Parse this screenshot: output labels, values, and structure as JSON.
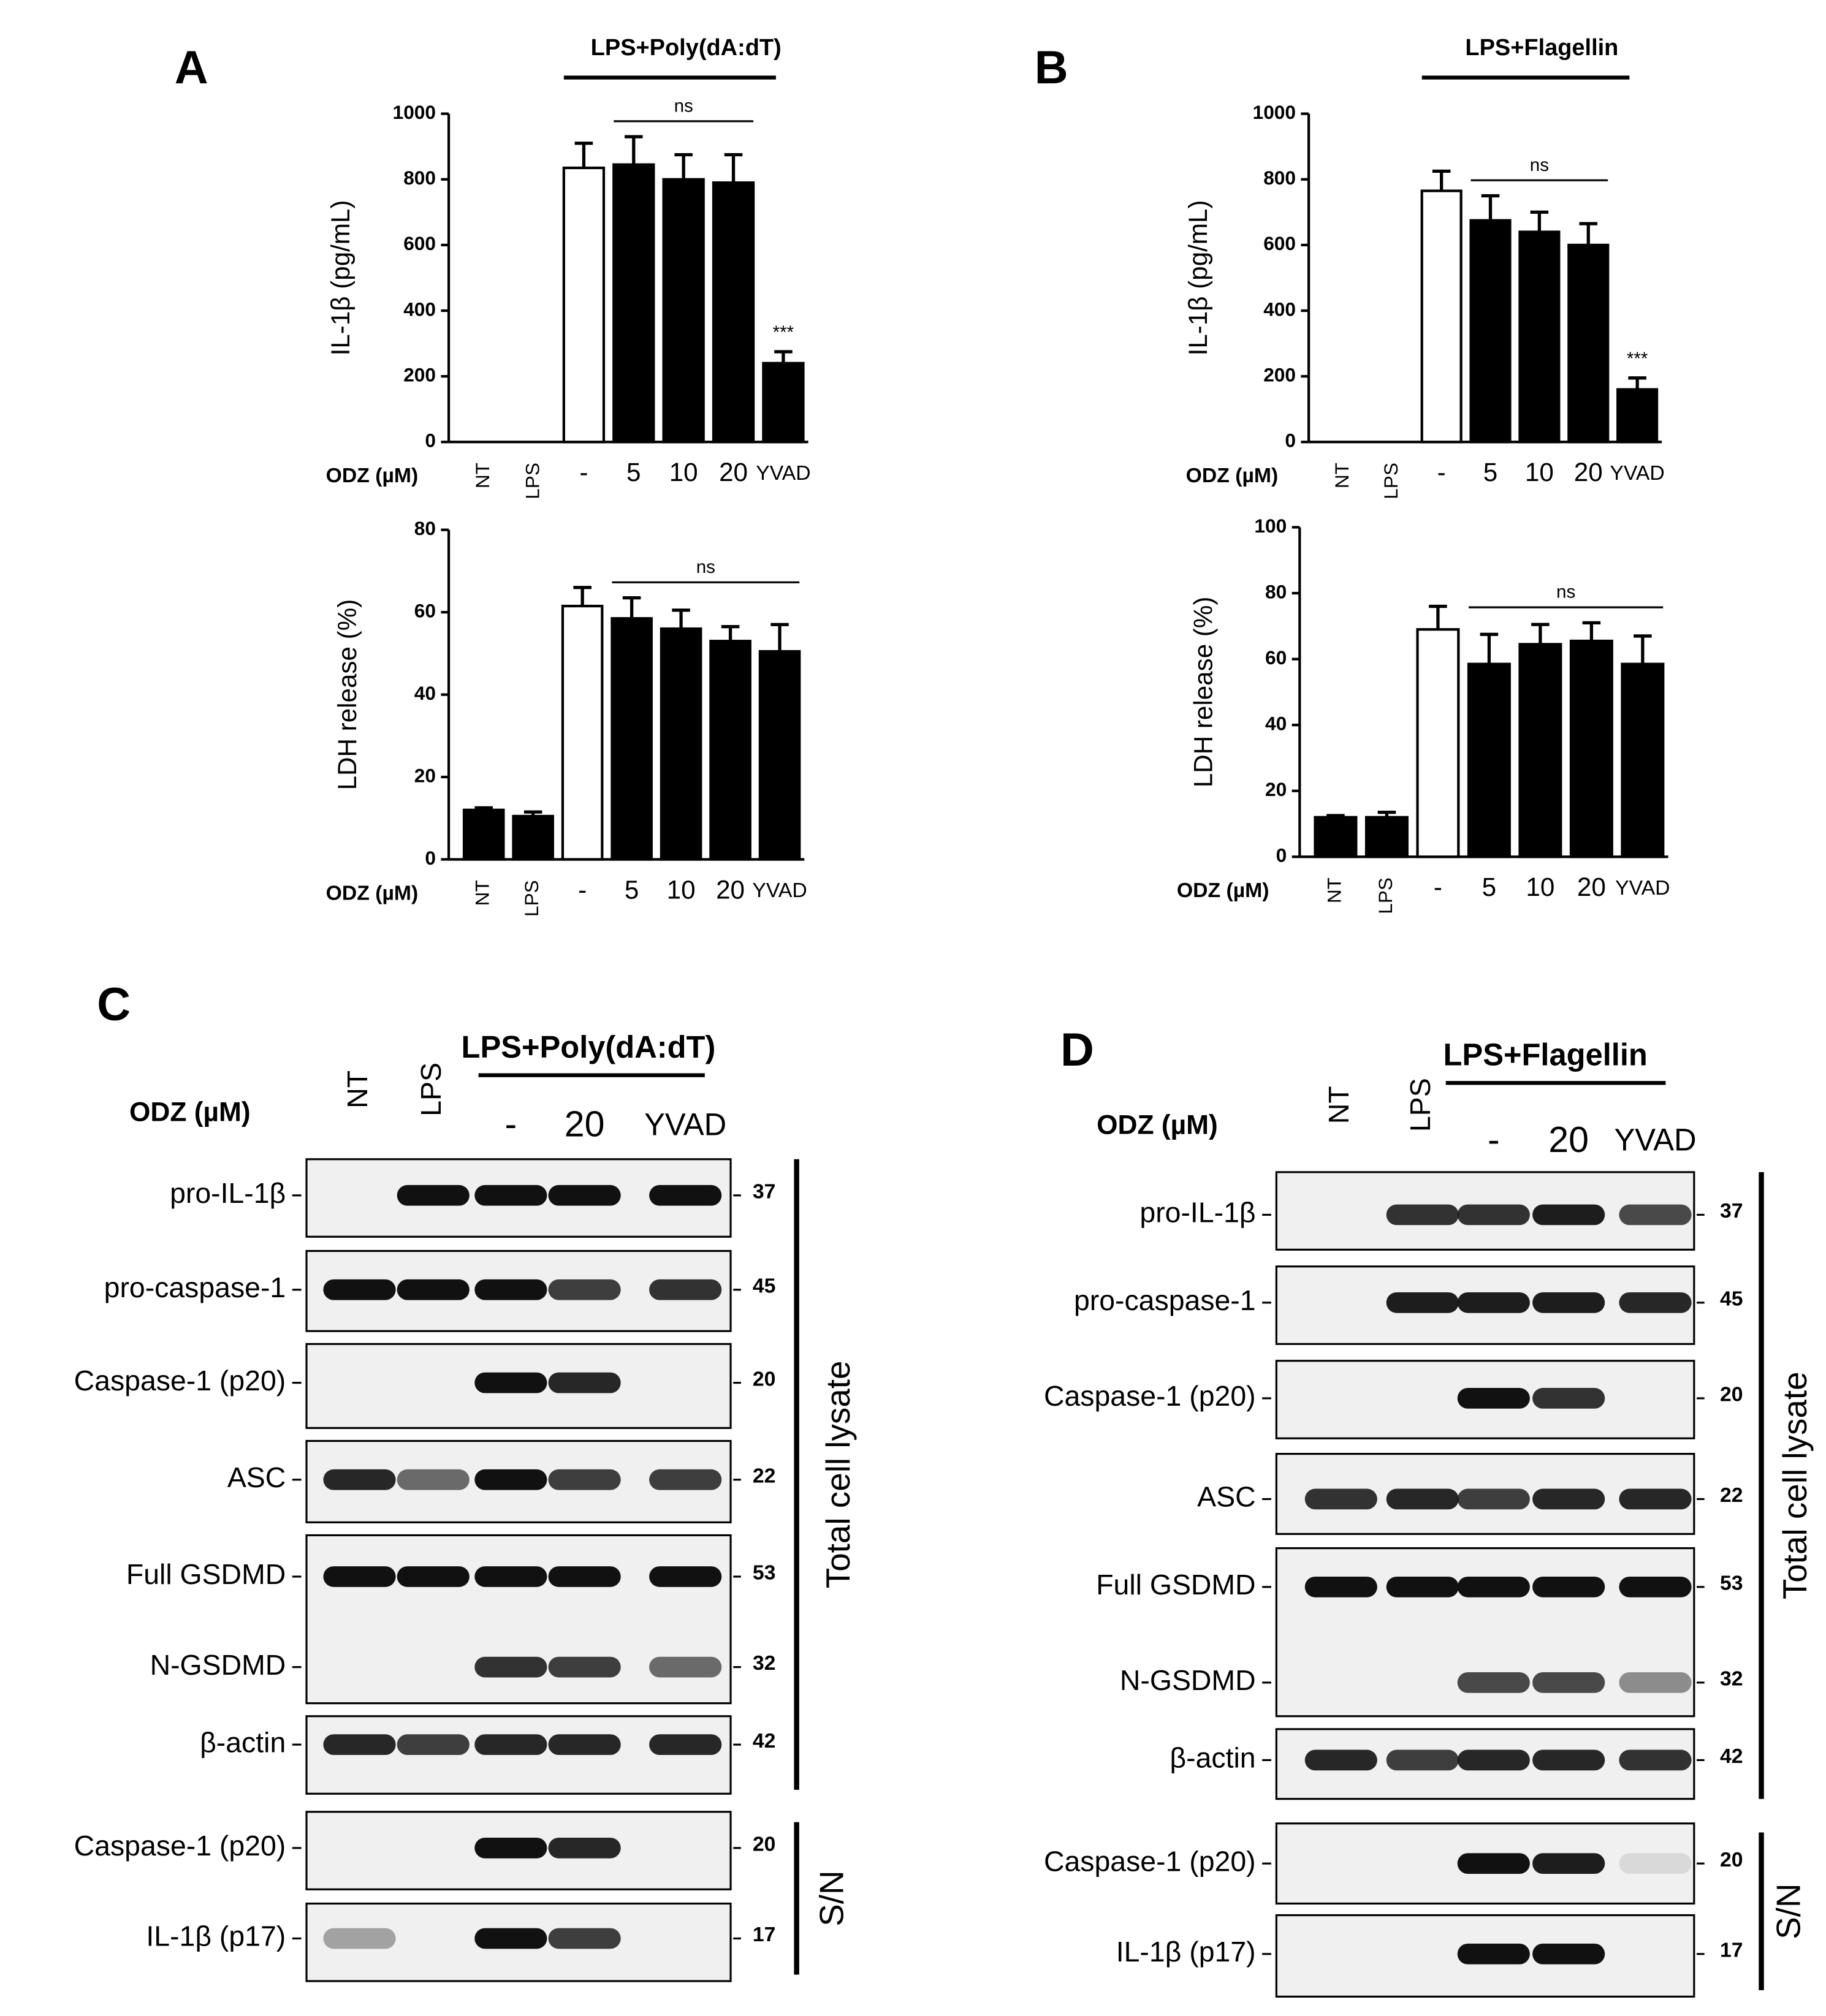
{
  "chart_data": [
    {
      "type": "bar",
      "panel": "A",
      "header": "LPS+Poly(dA:dT)",
      "x_label": "ODZ (µM)",
      "y_label": "IL-1β (pg/mL)",
      "categories": [
        "NT",
        "LPS",
        "-",
        "5",
        "10",
        "20",
        "YVAD"
      ],
      "values": [
        0,
        0,
        835,
        845,
        800,
        790,
        240
      ],
      "errors": [
        0,
        0,
        75,
        85,
        75,
        85,
        35
      ],
      "colors": [
        "#000000",
        "#000000",
        "#ffffff",
        "#000000",
        "#000000",
        "#000000",
        "#000000"
      ],
      "ylim": [
        0,
        1000
      ],
      "yticks": [
        0,
        200,
        400,
        600,
        800,
        1000
      ],
      "annotations": [
        {
          "text": "ns",
          "from": "5",
          "to": "20"
        },
        {
          "text": "***",
          "at": "YVAD"
        }
      ]
    },
    {
      "type": "bar",
      "x_label": "ODZ (µM)",
      "y_label": "LDH release (%)",
      "categories": [
        "NT",
        "LPS",
        "-",
        "5",
        "10",
        "20",
        "YVAD"
      ],
      "values": [
        12,
        10.5,
        61.5,
        58.5,
        56,
        53,
        50.5
      ],
      "errors": [
        0.5,
        1,
        4.5,
        5,
        4.5,
        3.5,
        6.5
      ],
      "colors": [
        "#000000",
        "#000000",
        "#ffffff",
        "#000000",
        "#000000",
        "#000000",
        "#000000"
      ],
      "ylim": [
        0,
        80
      ],
      "yticks": [
        0,
        20,
        40,
        60,
        80
      ],
      "annotations": [
        {
          "text": "ns",
          "from": "5",
          "to": "YVAD"
        }
      ]
    },
    {
      "type": "bar",
      "panel": "B",
      "header": "LPS+Flagellin",
      "x_label": "ODZ (µM)",
      "y_label": "IL-1β (pg/mL)",
      "categories": [
        "NT",
        "LPS",
        "-",
        "5",
        "10",
        "20",
        "YVAD"
      ],
      "values": [
        0,
        0,
        765,
        675,
        640,
        600,
        160
      ],
      "errors": [
        0,
        0,
        60,
        75,
        60,
        65,
        35
      ],
      "colors": [
        "#000000",
        "#000000",
        "#ffffff",
        "#000000",
        "#000000",
        "#000000",
        "#000000"
      ],
      "ylim": [
        0,
        1000
      ],
      "yticks": [
        0,
        200,
        400,
        600,
        800,
        1000
      ],
      "annotations": [
        {
          "text": "ns",
          "from": "5",
          "to": "20"
        },
        {
          "text": "***",
          "at": "YVAD"
        }
      ]
    },
    {
      "type": "bar",
      "x_label": "ODZ (µM)",
      "y_label": "LDH release (%)",
      "categories": [
        "NT",
        "LPS",
        "-",
        "5",
        "10",
        "20",
        "YVAD"
      ],
      "values": [
        12,
        12,
        69,
        58.5,
        64.5,
        65.5,
        58.5
      ],
      "errors": [
        0.5,
        1.5,
        7,
        9,
        6,
        5.5,
        8.5
      ],
      "colors": [
        "#000000",
        "#000000",
        "#ffffff",
        "#000000",
        "#000000",
        "#000000",
        "#000000"
      ],
      "ylim": [
        0,
        100
      ],
      "yticks": [
        0,
        20,
        40,
        60,
        80,
        100
      ],
      "annotations": [
        {
          "text": "ns",
          "from": "5",
          "to": "YVAD"
        }
      ]
    }
  ],
  "blots": [
    {
      "panel": "C",
      "header": "LPS+Poly(dA:dT)",
      "treatment": "ODZ (µM)",
      "lanes": [
        "NT",
        "LPS",
        "-",
        "20",
        "YVAD"
      ],
      "rows": [
        {
          "label": "pro-IL-1β",
          "mw": 37
        },
        {
          "label": "pro-caspase-1",
          "mw": 45
        },
        {
          "label": "Caspase-1 (p20)",
          "mw": 20
        },
        {
          "label": "ASC",
          "mw": 22
        },
        {
          "label": "Full GSDMD",
          "mw": 53
        },
        {
          "label": "N-GSDMD",
          "mw": 32
        },
        {
          "label": "β-actin",
          "mw": 42
        },
        {
          "label": "Caspase-1 (p20)",
          "mw": 20
        },
        {
          "label": "IL-1β (p17)",
          "mw": 17
        }
      ],
      "groups": [
        "Total cell lysate",
        "S/N"
      ]
    },
    {
      "panel": "D",
      "header": "LPS+Flagellin",
      "treatment": "ODZ (µM)",
      "lanes": [
        "NT",
        "LPS",
        "-",
        "20",
        "YVAD"
      ],
      "rows": [
        {
          "label": "pro-IL-1β",
          "mw": 37
        },
        {
          "label": "pro-caspase-1",
          "mw": 45
        },
        {
          "label": "Caspase-1 (p20)",
          "mw": 20
        },
        {
          "label": "ASC",
          "mw": 22
        },
        {
          "label": "Full GSDMD",
          "mw": 53
        },
        {
          "label": "N-GSDMD",
          "mw": 32
        },
        {
          "label": "β-actin",
          "mw": 42
        },
        {
          "label": "Caspase-1 (p20)",
          "mw": 20
        },
        {
          "label": "IL-1β (p17)",
          "mw": 17
        }
      ],
      "groups": [
        "Total cell lysate",
        "S/N"
      ]
    }
  ]
}
